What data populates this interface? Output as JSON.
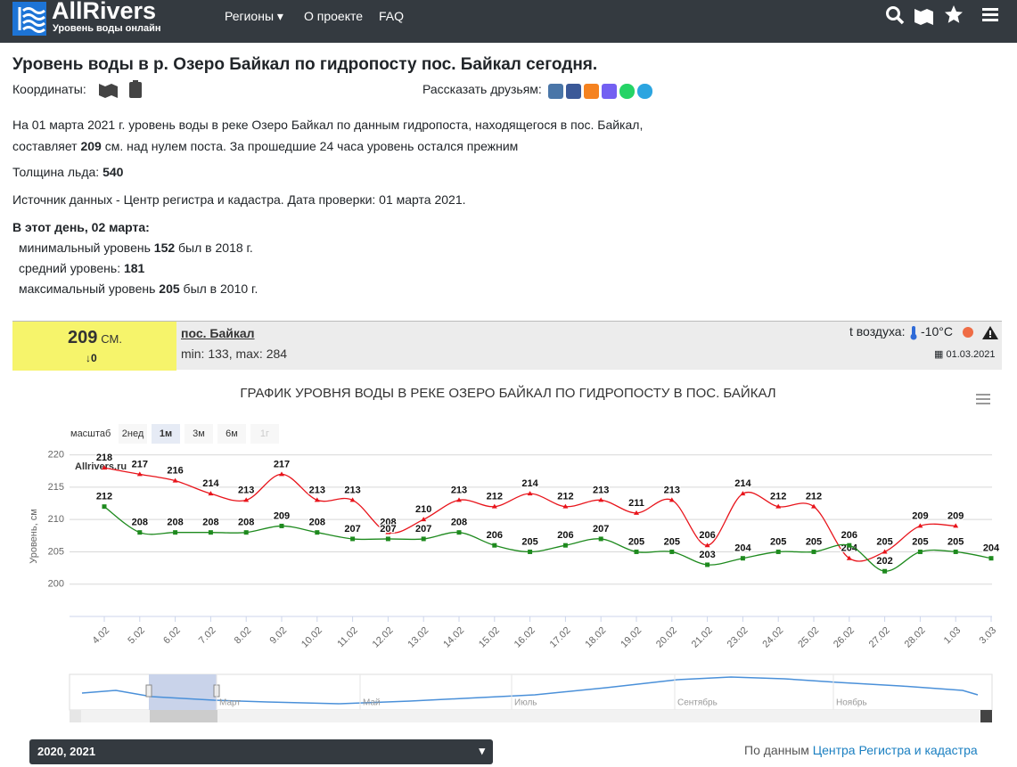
{
  "header": {
    "logo": "AllRivers",
    "tagline": "Уровень воды онлайн",
    "nav": [
      "Регионы",
      "О проекте",
      "FAQ"
    ]
  },
  "page": {
    "title": "Уровень воды в р. Озеро Байкал по гидропосту пос. Байкал сегодня.",
    "coords_label": "Координаты:",
    "share_label": "Рассказать друзьям:",
    "p1": [
      "На 01 марта 2021 г. уровень воды в реке Озеро Байкал по данным гидропоста, находящегося в пос. Байкал, составляет ",
      "209",
      " см. над нулем поста. За прошедшие 24 часа уровень остался прежним"
    ],
    "ice": [
      "Толщина льда: ",
      "540"
    ],
    "source": "Источник данных - Центр регистра и кадастра. Дата проверки: 01 марта 2021.",
    "day_title": "В этот день, 02 марта:",
    "day_rows": [
      [
        "минимальный уровень ",
        "152",
        " был в 2018 г."
      ],
      [
        "средний уровень: ",
        "181"
      ],
      [
        "максимальный уровень ",
        "205",
        " был в 2010 г."
      ]
    ]
  },
  "card": {
    "level": "209",
    "unit": "СМ.",
    "change": "0",
    "station": "пос. Байкал",
    "range": "min: 133, max: 284",
    "air_label": "t воздуха:",
    "air": "-10°C",
    "date": "01.03.2021"
  },
  "chart_data": {
    "type": "line",
    "title": "ГРАФИК УРОВНЯ ВОДЫ В РЕКЕ ОЗЕРО БАЙКАЛ ПО ГИДРОПОСТУ В ПОС. БАЙКАЛ",
    "y_label": "Уровень, см",
    "credit": "Allrivers.ru",
    "range_label": "масштаб",
    "range_buttons": [
      "2нед",
      "1м",
      "3м",
      "6м",
      "1г"
    ],
    "categories": [
      "4.02",
      "5.02",
      "6.02",
      "7.02",
      "8.02",
      "9.02",
      "10.02",
      "11.02",
      "12.02",
      "13.02",
      "14.02",
      "15.02",
      "16.02",
      "17.02",
      "18.02",
      "19.02",
      "20.02",
      "21.02",
      "23.02",
      "24.02",
      "25.02",
      "26.02",
      "27.02",
      "28.02",
      "1.03",
      "3.03"
    ],
    "series": [
      {
        "color": "#e8141b",
        "values": [
          218,
          217,
          216,
          214,
          213,
          217,
          213,
          213,
          208,
          210,
          213,
          212,
          214,
          212,
          213,
          211,
          213,
          206,
          214,
          212,
          212,
          204,
          205,
          209,
          209,
          null
        ]
      },
      {
        "color": "#1e8a1e",
        "values": [
          212,
          208,
          208,
          208,
          208,
          209,
          208,
          207,
          207,
          207,
          208,
          206,
          205,
          206,
          207,
          205,
          205,
          203,
          204,
          205,
          205,
          206,
          202,
          205,
          205,
          204
        ]
      }
    ],
    "ylim": [
      195,
      220.5
    ],
    "yticks": [
      200,
      205,
      210,
      215,
      220
    ],
    "grid": true
  },
  "navigator": {
    "months": [
      "Март",
      "Май",
      "Июль",
      "Сентябрь",
      "Ноябрь"
    ]
  },
  "footer": {
    "years": "2020, 2021",
    "source_prefix": "По данным ",
    "source_link": "Центра Регистра и кадастра"
  }
}
